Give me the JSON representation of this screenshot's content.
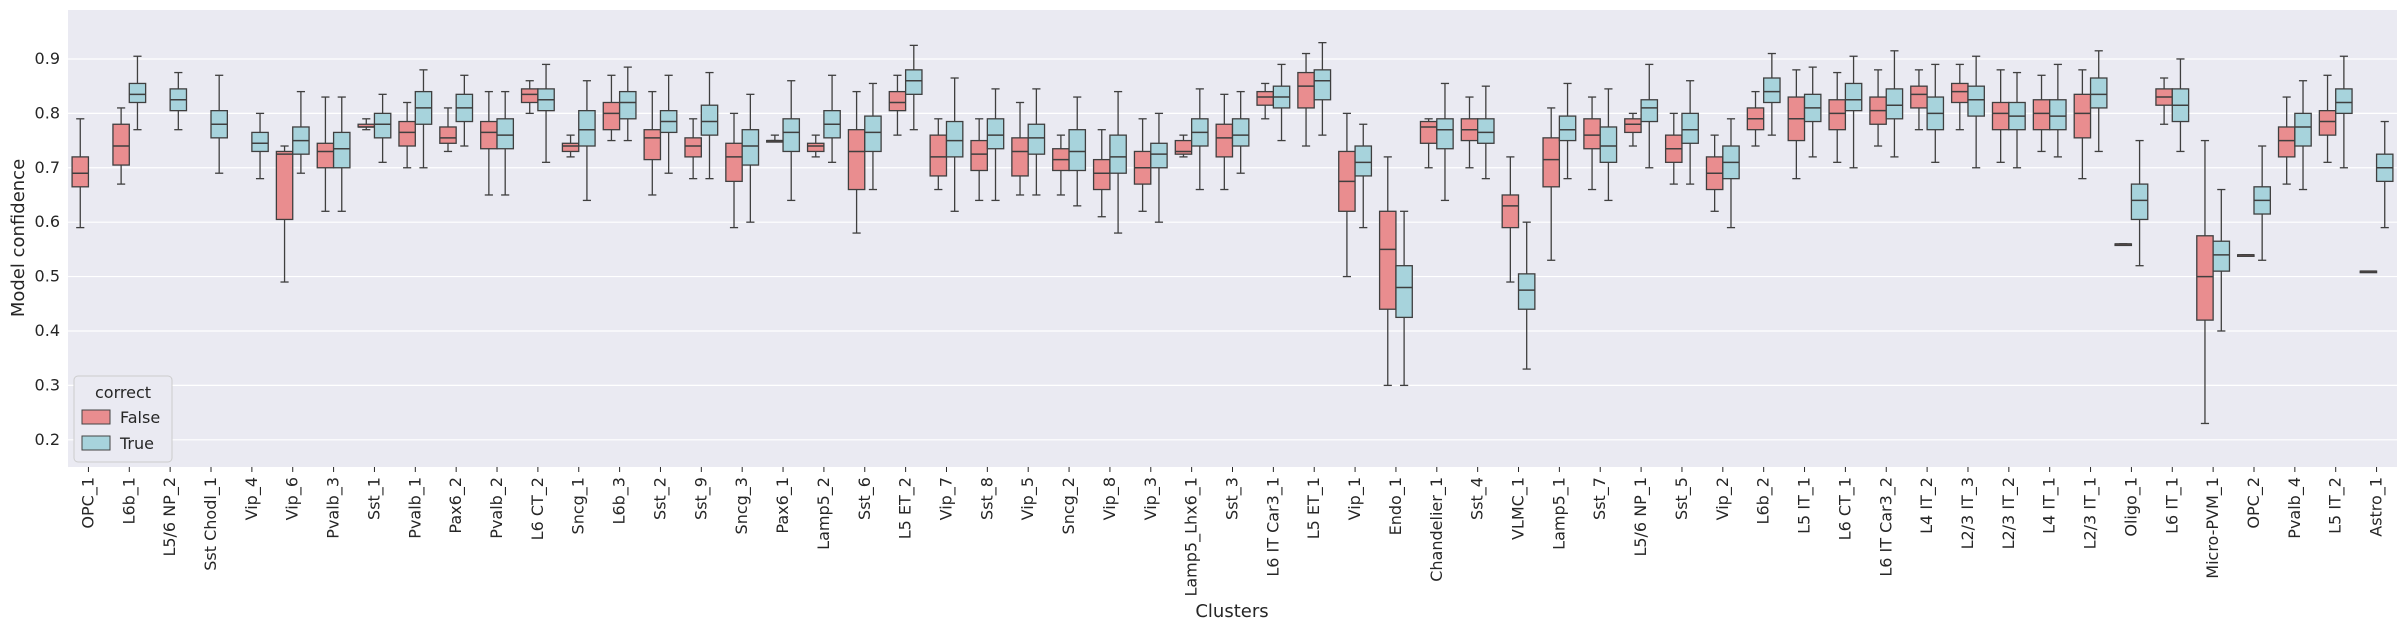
{
  "chart_data": {
    "type": "box",
    "xlabel": "Clusters",
    "ylabel": "Model confidence",
    "ylim": [
      0.15,
      0.99
    ],
    "yticks": [
      0.2,
      0.3,
      0.4,
      0.5,
      0.6,
      0.7,
      0.8,
      0.9
    ],
    "grid": true,
    "legend": {
      "title": "correct",
      "position": "lower-left",
      "entries": [
        {
          "label": "False",
          "color": "#e98d8f"
        },
        {
          "label": "True",
          "color": "#a7d3dc"
        }
      ]
    },
    "series_colors": {
      "False": "#e98d8f",
      "True": "#a7d3dc"
    },
    "categories": [
      "OPC_1",
      "L6b_1",
      "L5/6 NP_2",
      "Sst Chodl_1",
      "Vip_4",
      "Vip_6",
      "Pvalb_3",
      "Sst_1",
      "Pvalb_1",
      "Pax6_2",
      "Pvalb_2",
      "L6 CT_2",
      "Sncg_1",
      "L6b_3",
      "Sst_2",
      "Sst_9",
      "Sncg_3",
      "Pax6_1",
      "Lamp5_2",
      "Sst_6",
      "L5 ET_2",
      "Vip_7",
      "Sst_8",
      "Vip_5",
      "Sncg_2",
      "Vip_8",
      "Vip_3",
      "Lamp5_Lhx6_1",
      "Sst_3",
      "L6 IT Car3_1",
      "L5 ET_1",
      "Vip_1",
      "Endo_1",
      "Chandelier_1",
      "Sst_4",
      "VLMC_1",
      "Lamp5_1",
      "Sst_7",
      "L5/6 NP_1",
      "Sst_5",
      "Vip_2",
      "L6b_2",
      "L5 IT_1",
      "L6 CT_1",
      "L6 IT Car3_2",
      "L4 IT_2",
      "L2/3 IT_3",
      "L2/3 IT_2",
      "L4 IT_1",
      "L2/3 IT_1",
      "Oligo_1",
      "L6 IT_1",
      "Micro-PVM_1",
      "OPC_2",
      "Pvalb_4",
      "L5 IT_2",
      "Astro_1"
    ],
    "boxes": [
      {
        "f": [
          0.59,
          0.665,
          0.69,
          0.72,
          0.79
        ],
        "t": null
      },
      {
        "f": [
          0.67,
          0.705,
          0.74,
          0.78,
          0.81
        ],
        "t": [
          0.77,
          0.82,
          0.835,
          0.855,
          0.905
        ]
      },
      {
        "f": null,
        "t": [
          0.77,
          0.805,
          0.825,
          0.845,
          0.875
        ]
      },
      {
        "f": null,
        "t": [
          0.69,
          0.755,
          0.78,
          0.805,
          0.87
        ]
      },
      {
        "f": null,
        "t": [
          0.68,
          0.73,
          0.745,
          0.765,
          0.8
        ]
      },
      {
        "f": [
          0.49,
          0.605,
          0.725,
          0.73,
          0.74
        ],
        "t": [
          0.69,
          0.725,
          0.75,
          0.775,
          0.84
        ]
      },
      {
        "f": [
          0.62,
          0.7,
          0.73,
          0.745,
          0.83
        ],
        "t": [
          0.62,
          0.7,
          0.735,
          0.765,
          0.83
        ]
      },
      {
        "f": [
          0.77,
          0.775,
          0.775,
          0.78,
          0.79
        ],
        "t": [
          0.71,
          0.755,
          0.78,
          0.8,
          0.835
        ]
      },
      {
        "f": [
          0.7,
          0.74,
          0.765,
          0.785,
          0.82
        ],
        "t": [
          0.7,
          0.78,
          0.81,
          0.84,
          0.88
        ]
      },
      {
        "f": [
          0.73,
          0.745,
          0.755,
          0.775,
          0.81
        ],
        "t": [
          0.74,
          0.785,
          0.81,
          0.835,
          0.87
        ]
      },
      {
        "f": [
          0.65,
          0.735,
          0.765,
          0.785,
          0.84
        ],
        "t": [
          0.65,
          0.735,
          0.76,
          0.79,
          0.84
        ]
      },
      {
        "f": [
          0.8,
          0.82,
          0.835,
          0.845,
          0.86
        ],
        "t": [
          0.71,
          0.805,
          0.825,
          0.845,
          0.89
        ]
      },
      {
        "f": [
          0.72,
          0.73,
          0.74,
          0.745,
          0.76
        ],
        "t": [
          0.64,
          0.74,
          0.77,
          0.805,
          0.86
        ]
      },
      {
        "f": [
          0.75,
          0.77,
          0.8,
          0.82,
          0.87
        ],
        "t": [
          0.75,
          0.79,
          0.82,
          0.84,
          0.885
        ]
      },
      {
        "f": [
          0.65,
          0.715,
          0.755,
          0.77,
          0.84
        ],
        "t": [
          0.69,
          0.765,
          0.785,
          0.805,
          0.87
        ]
      },
      {
        "f": [
          0.68,
          0.72,
          0.74,
          0.755,
          0.79
        ],
        "t": [
          0.68,
          0.76,
          0.785,
          0.815,
          0.875
        ]
      },
      {
        "f": [
          0.59,
          0.675,
          0.72,
          0.745,
          0.8
        ],
        "t": [
          0.6,
          0.705,
          0.74,
          0.77,
          0.835
        ]
      },
      {
        "f": [
          0.75,
          0.75,
          0.75,
          0.75,
          0.76
        ],
        "t": [
          0.64,
          0.73,
          0.765,
          0.79,
          0.86
        ]
      },
      {
        "f": [
          0.72,
          0.73,
          0.74,
          0.745,
          0.76
        ],
        "t": [
          0.71,
          0.755,
          0.78,
          0.805,
          0.87
        ]
      },
      {
        "f": [
          0.58,
          0.66,
          0.73,
          0.77,
          0.84
        ],
        "t": [
          0.66,
          0.73,
          0.765,
          0.795,
          0.855
        ]
      },
      {
        "f": [
          0.76,
          0.805,
          0.82,
          0.84,
          0.87
        ],
        "t": [
          0.77,
          0.835,
          0.86,
          0.88,
          0.925
        ]
      },
      {
        "f": [
          0.66,
          0.685,
          0.72,
          0.76,
          0.79
        ],
        "t": [
          0.62,
          0.72,
          0.75,
          0.785,
          0.865
        ]
      },
      {
        "f": [
          0.64,
          0.695,
          0.725,
          0.75,
          0.79
        ],
        "t": [
          0.64,
          0.735,
          0.76,
          0.79,
          0.845
        ]
      },
      {
        "f": [
          0.65,
          0.685,
          0.73,
          0.755,
          0.82
        ],
        "t": [
          0.65,
          0.725,
          0.755,
          0.78,
          0.845
        ]
      },
      {
        "f": [
          0.65,
          0.695,
          0.715,
          0.735,
          0.76
        ],
        "t": [
          0.63,
          0.695,
          0.73,
          0.77,
          0.83
        ]
      },
      {
        "f": [
          0.61,
          0.66,
          0.69,
          0.715,
          0.77
        ],
        "t": [
          0.58,
          0.69,
          0.72,
          0.76,
          0.84
        ]
      },
      {
        "f": [
          0.62,
          0.67,
          0.7,
          0.73,
          0.79
        ],
        "t": [
          0.6,
          0.7,
          0.725,
          0.745,
          0.8
        ]
      },
      {
        "f": [
          0.72,
          0.725,
          0.73,
          0.75,
          0.76
        ],
        "t": [
          0.66,
          0.74,
          0.765,
          0.79,
          0.845
        ]
      },
      {
        "f": [
          0.66,
          0.72,
          0.755,
          0.78,
          0.835
        ],
        "t": [
          0.69,
          0.74,
          0.76,
          0.79,
          0.84
        ]
      },
      {
        "f": [
          0.79,
          0.815,
          0.83,
          0.84,
          0.855
        ],
        "t": [
          0.75,
          0.81,
          0.83,
          0.85,
          0.89
        ]
      },
      {
        "f": [
          0.74,
          0.81,
          0.85,
          0.875,
          0.91
        ],
        "t": [
          0.76,
          0.825,
          0.86,
          0.88,
          0.93
        ]
      },
      {
        "f": [
          0.5,
          0.62,
          0.675,
          0.73,
          0.8
        ],
        "t": [
          0.59,
          0.685,
          0.71,
          0.74,
          0.78
        ]
      },
      {
        "f": [
          0.3,
          0.44,
          0.55,
          0.62,
          0.72
        ],
        "t": [
          0.3,
          0.425,
          0.48,
          0.52,
          0.62
        ]
      },
      {
        "f": [
          0.7,
          0.745,
          0.775,
          0.785,
          0.79
        ],
        "t": [
          0.64,
          0.735,
          0.77,
          0.79,
          0.855
        ]
      },
      {
        "f": [
          0.7,
          0.75,
          0.77,
          0.79,
          0.83
        ],
        "t": [
          0.68,
          0.745,
          0.765,
          0.79,
          0.85
        ]
      },
      {
        "f": [
          0.49,
          0.59,
          0.63,
          0.65,
          0.72
        ],
        "t": [
          0.33,
          0.44,
          0.475,
          0.505,
          0.6
        ]
      },
      {
        "f": [
          0.53,
          0.665,
          0.715,
          0.755,
          0.81
        ],
        "t": [
          0.68,
          0.75,
          0.77,
          0.795,
          0.855
        ]
      },
      {
        "f": [
          0.66,
          0.735,
          0.76,
          0.79,
          0.83
        ],
        "t": [
          0.64,
          0.71,
          0.74,
          0.775,
          0.845
        ]
      },
      {
        "f": [
          0.74,
          0.765,
          0.78,
          0.79,
          0.8
        ],
        "t": [
          0.7,
          0.785,
          0.81,
          0.825,
          0.89
        ]
      },
      {
        "f": [
          0.67,
          0.71,
          0.735,
          0.76,
          0.8
        ],
        "t": [
          0.67,
          0.745,
          0.77,
          0.8,
          0.86
        ]
      },
      {
        "f": [
          0.62,
          0.66,
          0.69,
          0.72,
          0.76
        ],
        "t": [
          0.59,
          0.68,
          0.71,
          0.74,
          0.79
        ]
      },
      {
        "f": [
          0.74,
          0.77,
          0.79,
          0.81,
          0.84
        ],
        "t": [
          0.76,
          0.82,
          0.84,
          0.865,
          0.91
        ]
      },
      {
        "f": [
          0.68,
          0.75,
          0.79,
          0.83,
          0.88
        ],
        "t": [
          0.72,
          0.785,
          0.81,
          0.835,
          0.885
        ]
      },
      {
        "f": [
          0.71,
          0.77,
          0.8,
          0.825,
          0.875
        ],
        "t": [
          0.7,
          0.805,
          0.825,
          0.855,
          0.905
        ]
      },
      {
        "f": [
          0.74,
          0.78,
          0.805,
          0.83,
          0.88
        ],
        "t": [
          0.72,
          0.79,
          0.815,
          0.845,
          0.915
        ]
      },
      {
        "f": [
          0.77,
          0.81,
          0.835,
          0.85,
          0.88
        ],
        "t": [
          0.71,
          0.77,
          0.8,
          0.83,
          0.89
        ]
      },
      {
        "f": [
          0.77,
          0.82,
          0.84,
          0.855,
          0.89
        ],
        "t": [
          0.7,
          0.795,
          0.825,
          0.85,
          0.905
        ]
      },
      {
        "f": [
          0.71,
          0.77,
          0.8,
          0.82,
          0.88
        ],
        "t": [
          0.7,
          0.77,
          0.795,
          0.82,
          0.875
        ]
      },
      {
        "f": [
          0.73,
          0.77,
          0.8,
          0.825,
          0.87
        ],
        "t": [
          0.72,
          0.77,
          0.795,
          0.825,
          0.89
        ]
      },
      {
        "f": [
          0.68,
          0.755,
          0.8,
          0.835,
          0.88
        ],
        "t": [
          0.73,
          0.81,
          0.835,
          0.865,
          0.915
        ]
      },
      {
        "f": [
          0.56,
          0.56,
          0.56,
          0.56,
          0.56
        ],
        "t": [
          0.52,
          0.605,
          0.64,
          0.67,
          0.75
        ]
      },
      {
        "f": [
          0.78,
          0.815,
          0.83,
          0.845,
          0.865
        ],
        "t": [
          0.73,
          0.785,
          0.815,
          0.845,
          0.9
        ]
      },
      {
        "f": [
          0.23,
          0.42,
          0.5,
          0.575,
          0.75
        ],
        "t": [
          0.4,
          0.51,
          0.54,
          0.565,
          0.66
        ]
      },
      {
        "f": [
          0.54,
          0.54,
          0.54,
          0.54,
          0.54
        ],
        "t": [
          0.53,
          0.615,
          0.64,
          0.665,
          0.74
        ]
      },
      {
        "f": [
          0.67,
          0.72,
          0.75,
          0.775,
          0.83
        ],
        "t": [
          0.66,
          0.74,
          0.775,
          0.8,
          0.86
        ]
      },
      {
        "f": [
          0.71,
          0.76,
          0.785,
          0.805,
          0.87
        ],
        "t": [
          0.7,
          0.8,
          0.82,
          0.845,
          0.905
        ]
      },
      {
        "f": [
          0.51,
          0.51,
          0.51,
          0.51,
          0.51
        ],
        "t": [
          0.59,
          0.675,
          0.7,
          0.725,
          0.785
        ]
      }
    ]
  }
}
